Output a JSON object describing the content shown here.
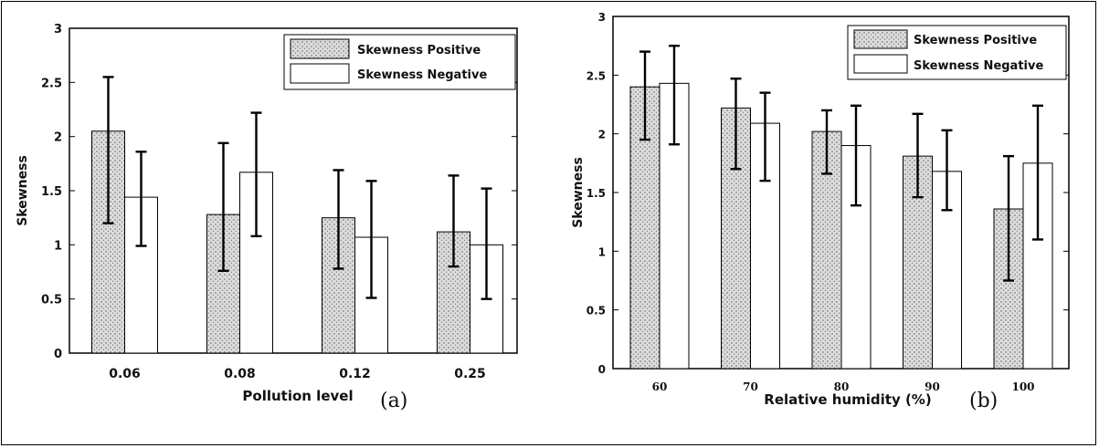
{
  "chart_data": [
    {
      "type": "bar",
      "panel_label": "(a)",
      "xlabel": "Pollution level",
      "ylabel": "Skewness",
      "ylim": [
        0,
        3
      ],
      "yticks": [
        "0",
        "0.5",
        "1",
        "1.5",
        "2",
        "2.5",
        "3"
      ],
      "categories": [
        "0.06",
        "0.08",
        "0.12",
        "0.25"
      ],
      "series": [
        {
          "name": "Skewness Positive",
          "values": [
            2.05,
            1.28,
            1.25,
            1.12
          ],
          "err_low": [
            1.2,
            0.76,
            0.78,
            0.8
          ],
          "err_high": [
            2.55,
            1.94,
            1.69,
            1.64
          ]
        },
        {
          "name": "Skewness Negative",
          "values": [
            1.44,
            1.67,
            1.07,
            1.0
          ],
          "err_low": [
            0.99,
            1.08,
            0.51,
            0.5
          ],
          "err_high": [
            1.86,
            2.22,
            1.59,
            1.52
          ]
        }
      ],
      "legend": "top-right",
      "grid": false
    },
    {
      "type": "bar",
      "panel_label": "(b)",
      "xlabel": "Relative humidity (%)",
      "ylabel": "Skewness",
      "ylim": [
        0,
        3
      ],
      "yticks": [
        "0",
        "0.5",
        "1",
        "1.5",
        "2",
        "2.5",
        "3"
      ],
      "categories": [
        "60",
        "70",
        "80",
        "90",
        "100"
      ],
      "series": [
        {
          "name": "Skewness Positive",
          "values": [
            2.4,
            2.22,
            2.02,
            1.81,
            1.36
          ],
          "err_low": [
            1.95,
            1.7,
            1.66,
            1.46,
            0.75
          ],
          "err_high": [
            2.7,
            2.47,
            2.2,
            2.17,
            1.81
          ]
        },
        {
          "name": "Skewness Negative",
          "values": [
            2.43,
            2.09,
            1.9,
            1.68,
            1.75
          ],
          "err_low": [
            1.91,
            1.6,
            1.39,
            1.35,
            1.1
          ],
          "err_high": [
            2.75,
            2.35,
            2.24,
            2.03,
            2.24
          ]
        }
      ],
      "legend": "top-right",
      "grid": false
    }
  ],
  "colors": {
    "positive_fill": "#d9d9d9",
    "positive_dots": "#555555",
    "negative_fill": "#ffffff",
    "axis": "#000000"
  }
}
